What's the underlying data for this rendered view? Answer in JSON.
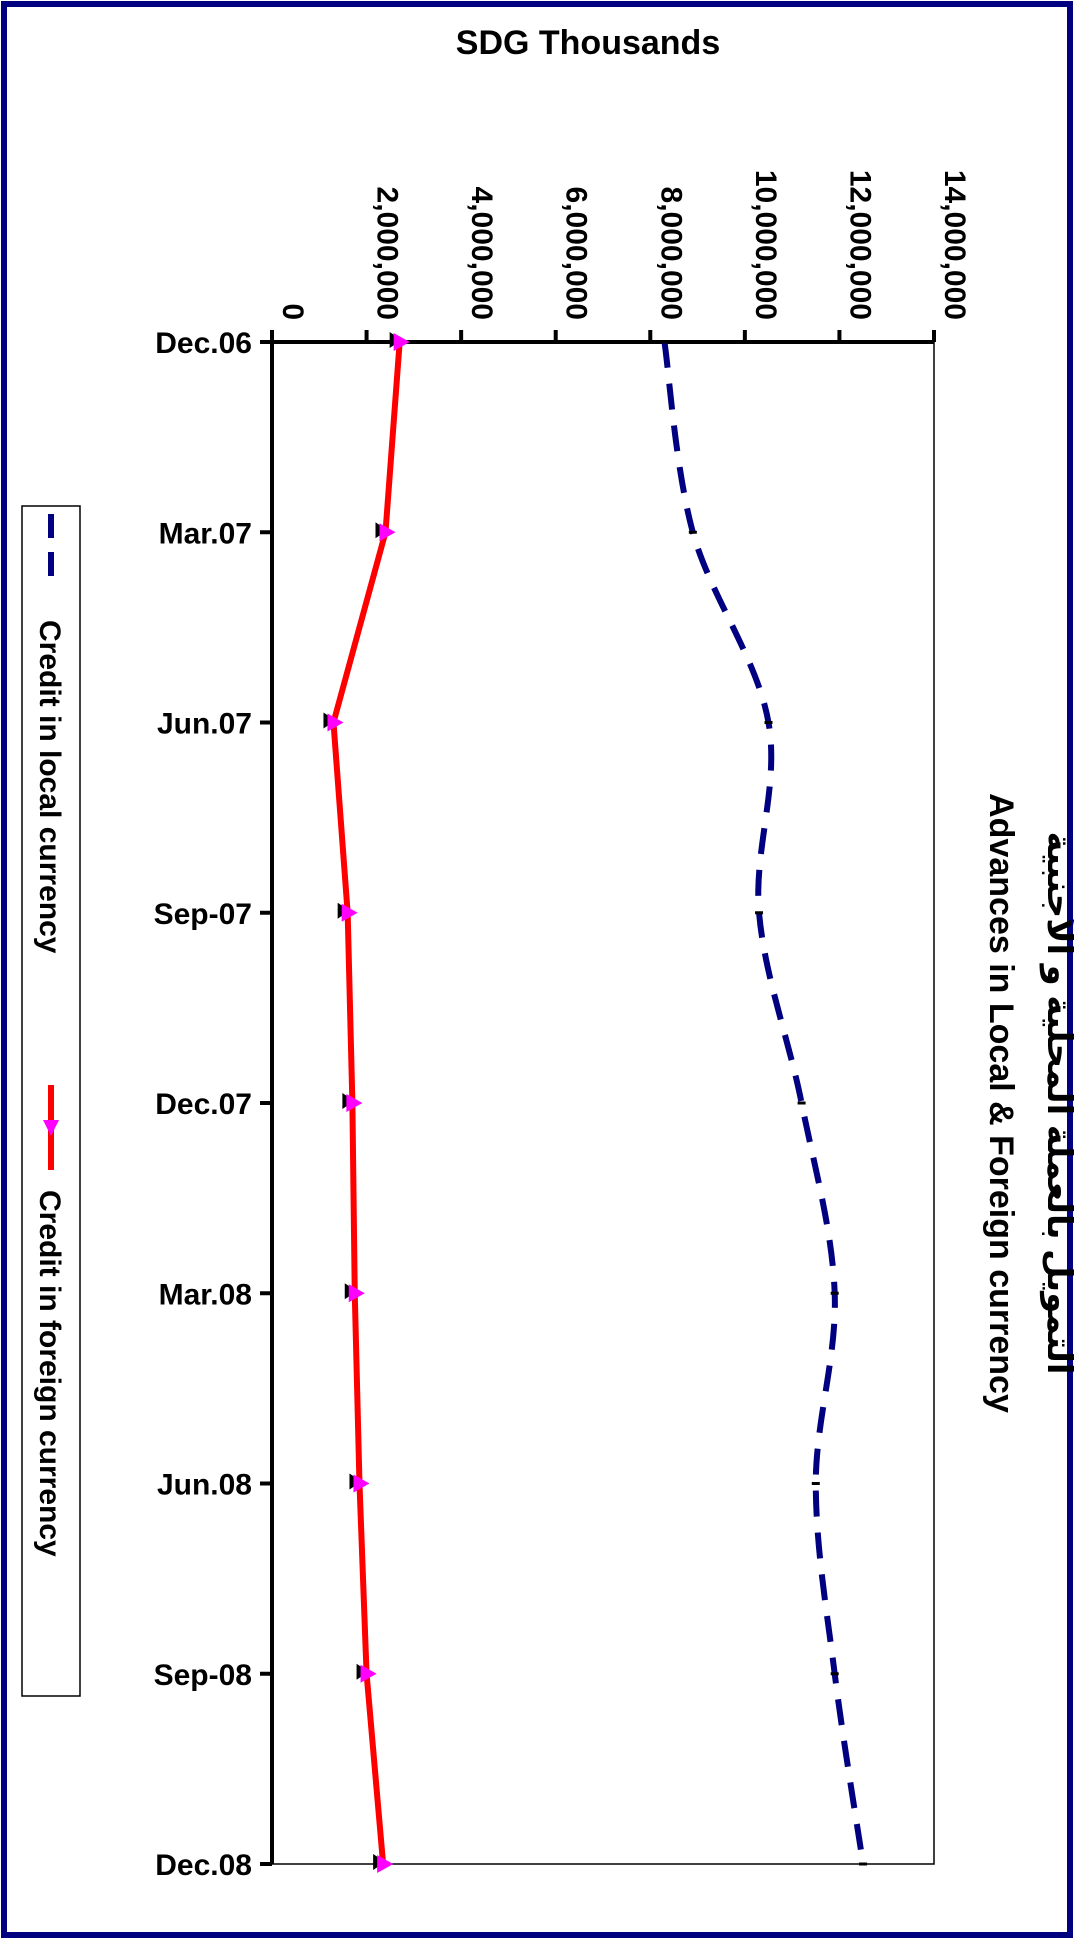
{
  "chart_data": {
    "type": "line",
    "title_ar": "التمويل بالعملة المحلية و الأجنبية",
    "title": "Advances in Local & Foreign currency",
    "ylabel": "SDG Thousands",
    "xlabel": "",
    "ylim": [
      0,
      14000000
    ],
    "yticks": [
      0,
      2000000,
      4000000,
      6000000,
      8000000,
      10000000,
      12000000,
      14000000
    ],
    "ytick_labels": [
      "0",
      "2,000,000",
      "4,000,000",
      "6,000,000",
      "8,000,000",
      "10,000,000",
      "12,000,000",
      "14,000,000"
    ],
    "categories": [
      "Dec.06",
      "Mar.07",
      "Jun.07",
      "Sep-07",
      "Dec.07",
      "Mar.08",
      "Jun.08",
      "Sep-08",
      "Dec.08"
    ],
    "series": [
      {
        "name": "Credit in local currency",
        "color": "#000080",
        "style": "dashed",
        "values": [
          8300000,
          8900000,
          10500000,
          10300000,
          11200000,
          11900000,
          11500000,
          11900000,
          12500000
        ]
      },
      {
        "name": "Credit in foreign currency",
        "color": "#ff0000",
        "marker_color": "#ff00ff",
        "style": "solid",
        "values": [
          2700000,
          2400000,
          1300000,
          1600000,
          1700000,
          1750000,
          1850000,
          2000000,
          2350000
        ]
      }
    ],
    "legend_position": "left",
    "grid": false
  },
  "colors": {
    "border": "#000080",
    "local": "#000080",
    "foreign": "#ff0000",
    "marker": "#ff00ff"
  }
}
